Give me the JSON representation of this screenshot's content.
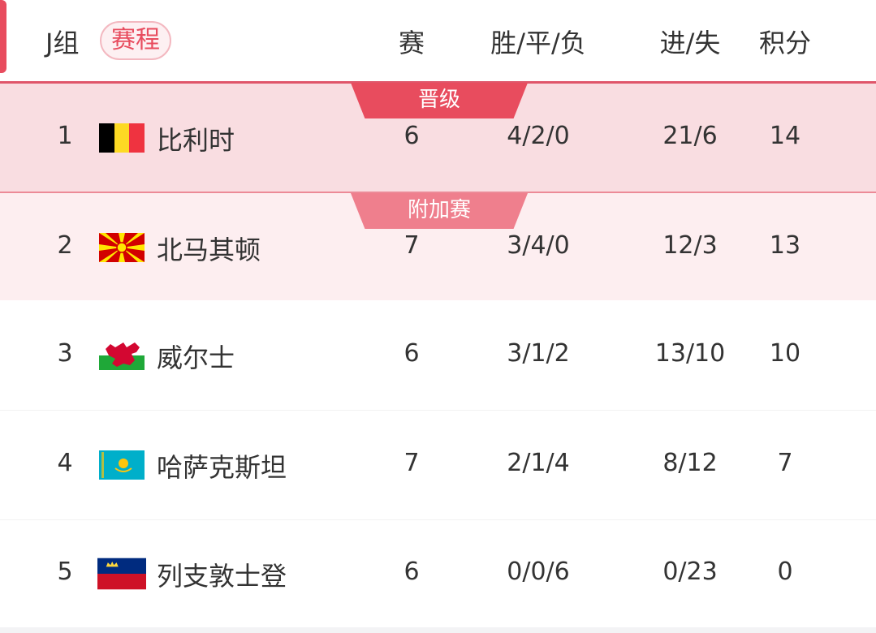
{
  "header": {
    "group": "J组",
    "schedule_button": "赛程",
    "col_played": "赛",
    "col_wdl": "胜/平/负",
    "col_goals": "进/失",
    "col_points": "积分"
  },
  "zone_labels": {
    "qualified": "晋级",
    "playoff": "附加赛"
  },
  "colors": {
    "accent": "#e84c5e",
    "qualified_bg": "#f9dde1",
    "playoff_bg": "#fdeef0"
  },
  "rows": [
    {
      "rank": "1",
      "team": "比利时",
      "flag": "belgium-flag",
      "played": "6",
      "wdl": "4/2/0",
      "goals": "21/6",
      "points": "14"
    },
    {
      "rank": "2",
      "team": "北马其顿",
      "flag": "north-macedonia-flag",
      "played": "7",
      "wdl": "3/4/0",
      "goals": "12/3",
      "points": "13"
    },
    {
      "rank": "3",
      "team": "威尔士",
      "flag": "wales-flag",
      "played": "6",
      "wdl": "3/1/2",
      "goals": "13/10",
      "points": "10"
    },
    {
      "rank": "4",
      "team": "哈萨克斯坦",
      "flag": "kazakhstan-flag",
      "played": "7",
      "wdl": "2/1/4",
      "goals": "8/12",
      "points": "7"
    },
    {
      "rank": "5",
      "team": "列支敦士登",
      "flag": "liechtenstein-flag",
      "played": "6",
      "wdl": "0/0/6",
      "goals": "0/23",
      "points": "0"
    }
  ]
}
